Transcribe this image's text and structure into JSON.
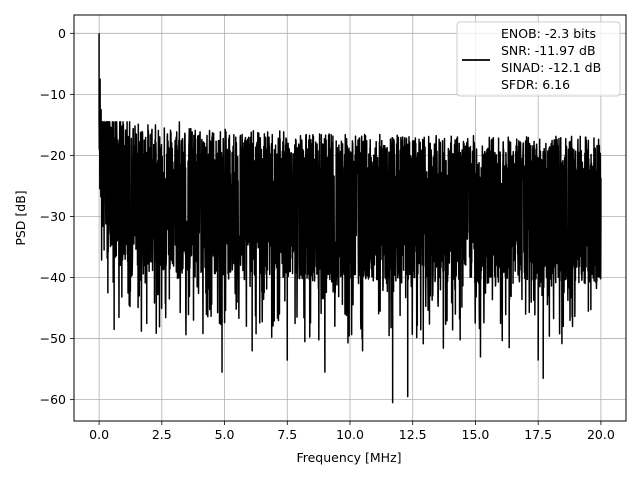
{
  "chart_data": {
    "type": "line",
    "title": "",
    "xlabel": "Frequency [MHz]",
    "ylabel": "PSD [dB]",
    "xlim": [
      -1.0,
      21.0
    ],
    "ylim": [
      -63.5,
      3.0
    ],
    "xticks": [
      0.0,
      2.5,
      5.0,
      7.5,
      10.0,
      12.5,
      15.0,
      17.5,
      20.0
    ],
    "xtick_labels": [
      "0.0",
      "2.5",
      "5.0",
      "7.5",
      "10.0",
      "12.5",
      "15.0",
      "17.5",
      "20.0"
    ],
    "yticks": [
      0,
      -10,
      -20,
      -30,
      -40,
      -50,
      -60
    ],
    "ytick_labels": [
      "0",
      "−10",
      "−20",
      "−30",
      "−40",
      "−50",
      "−60"
    ],
    "grid": true,
    "legend_position": "top-right",
    "series": [
      {
        "color": "#000000",
        "description": "Noisy power spectral density trace: peak of 0 dB at 0 MHz, decaying to a noise floor around -30 dB with fluctuations between about -20 and -45 dB, deep nulls down to about -60 dB.",
        "points": [
          [
            0.0,
            0.0
          ],
          [
            0.02,
            -13.0
          ],
          [
            0.04,
            -7.5
          ],
          [
            0.06,
            -20.0
          ],
          [
            0.08,
            -12.5
          ],
          [
            0.1,
            -27.5
          ],
          [
            0.13,
            -15.0
          ],
          [
            0.16,
            -22.0
          ],
          [
            0.2,
            -35.5
          ],
          [
            0.25,
            -16.5
          ],
          [
            0.3,
            -26.0
          ],
          [
            0.35,
            -42.5
          ],
          [
            0.4,
            -19.5
          ],
          [
            0.5,
            -33.0
          ],
          [
            0.6,
            -48.5
          ],
          [
            0.7,
            -17.0
          ],
          [
            0.85,
            -38.0
          ],
          [
            1.0,
            -21.0
          ],
          [
            1.2,
            -44.5
          ],
          [
            1.4,
            -18.5
          ],
          [
            1.6,
            -43.0
          ],
          [
            1.8,
            -17.5
          ],
          [
            1.9,
            -47.5
          ],
          [
            2.1,
            -19.0
          ],
          [
            2.3,
            -30.5
          ],
          [
            2.6,
            -15.5
          ],
          [
            2.8,
            -43.5
          ],
          [
            3.2,
            -14.5
          ],
          [
            3.5,
            -36.5
          ],
          [
            3.8,
            -20.0
          ],
          [
            4.1,
            -39.0
          ],
          [
            4.5,
            -17.0
          ],
          [
            4.8,
            -47.5
          ],
          [
            4.9,
            -55.5
          ],
          [
            5.2,
            -19.5
          ],
          [
            5.5,
            -44.0
          ],
          [
            5.8,
            -18.0
          ],
          [
            6.1,
            -52.0
          ],
          [
            6.4,
            -22.0
          ],
          [
            6.8,
            -39.5
          ],
          [
            7.2,
            -16.0
          ],
          [
            7.5,
            -53.5
          ],
          [
            7.8,
            -19.0
          ],
          [
            8.2,
            -50.5
          ],
          [
            8.5,
            -21.0
          ],
          [
            9.0,
            -55.5
          ],
          [
            9.3,
            -19.5
          ],
          [
            9.8,
            -46.0
          ],
          [
            10.2,
            -20.0
          ],
          [
            10.5,
            -52.0
          ],
          [
            10.8,
            -21.0
          ],
          [
            11.2,
            -45.5
          ],
          [
            11.5,
            -23.0
          ],
          [
            11.7,
            -60.5
          ],
          [
            12.0,
            -20.5
          ],
          [
            12.3,
            -59.5
          ],
          [
            12.6,
            -22.0
          ],
          [
            13.2,
            -43.0
          ],
          [
            13.6,
            -21.5
          ],
          [
            14.2,
            -46.0
          ],
          [
            14.6,
            -20.0
          ],
          [
            15.2,
            -53.0
          ],
          [
            15.6,
            -21.0
          ],
          [
            16.0,
            -47.5
          ],
          [
            16.4,
            -20.5
          ],
          [
            17.0,
            -46.0
          ],
          [
            17.5,
            -53.5
          ],
          [
            17.7,
            -56.5
          ],
          [
            18.0,
            -21.0
          ],
          [
            18.5,
            -48.0
          ],
          [
            19.0,
            -22.0
          ],
          [
            19.5,
            -45.5
          ],
          [
            19.8,
            -22.5
          ],
          [
            20.0,
            -30.0
          ]
        ]
      }
    ],
    "legend": {
      "lines": [
        "ENOB: -2.3 bits",
        "SNR: -11.97 dB",
        "SINAD: -12.1 dB",
        "SFDR: 6.16"
      ]
    }
  }
}
